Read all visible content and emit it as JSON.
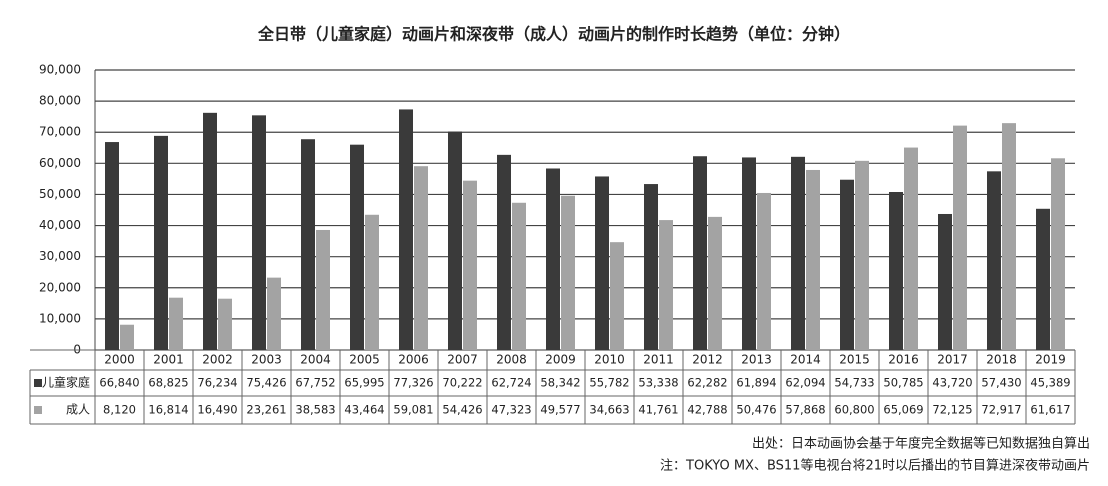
{
  "chart_data": {
    "type": "bar",
    "title": "全日带（儿童家庭）动画片和深夜带（成人）动画片的制作时长趋势（单位：分钟）",
    "categories": [
      "2000",
      "2001",
      "2002",
      "2003",
      "2004",
      "2005",
      "2006",
      "2007",
      "2008",
      "2009",
      "2010",
      "2011",
      "2012",
      "2013",
      "2014",
      "2015",
      "2016",
      "2017",
      "2018",
      "2019"
    ],
    "series": [
      {
        "name": "儿童家庭",
        "color": "#3a3a3a",
        "values": [
          66840,
          68825,
          76234,
          75426,
          67752,
          65995,
          77326,
          70222,
          62724,
          58342,
          55782,
          53338,
          62282,
          61894,
          62094,
          54733,
          50785,
          43720,
          57430,
          45389
        ],
        "value_labels": [
          "66,840",
          "68,825",
          "76,234",
          "75,426",
          "67,752",
          "65,995",
          "77,326",
          "70,222",
          "62,724",
          "58,342",
          "55,782",
          "53,338",
          "62,282",
          "61,894",
          "62,094",
          "54,733",
          "50,785",
          "43,720",
          "57,430",
          "45,389"
        ]
      },
      {
        "name": "成人",
        "color": "#a3a3a3",
        "values": [
          8120,
          16814,
          16490,
          23261,
          38583,
          43464,
          59081,
          54426,
          47323,
          49577,
          34663,
          41761,
          42788,
          50476,
          57868,
          60800,
          65069,
          72125,
          72917,
          61617
        ],
        "value_labels": [
          "8,120",
          "16,814",
          "16,490",
          "23,261",
          "38,583",
          "43,464",
          "59,081",
          "54,426",
          "47,323",
          "49,577",
          "34,663",
          "41,761",
          "42,788",
          "50,476",
          "57,868",
          "60,800",
          "65,069",
          "72,125",
          "72,917",
          "61,617"
        ]
      }
    ],
    "ylim": [
      0,
      90000
    ],
    "yticks": [
      0,
      {
        "value": 10000,
        "label": "10,000"
      },
      {
        "value": 20000,
        "label": "20,000"
      },
      {
        "value": 30000,
        "label": "30,000"
      },
      {
        "value": 40000,
        "label": "40,000"
      },
      {
        "value": 50000,
        "label": "50,000"
      },
      {
        "value": 60000,
        "label": "60,000"
      },
      {
        "value": 70000,
        "label": "70,000"
      },
      {
        "value": 80000,
        "label": "80,000"
      },
      {
        "value": 90000,
        "label": "90,000"
      }
    ],
    "grid": true,
    "source": "出处：日本动画协会基于年度完全数据等已知数据独自算出",
    "note": "注：TOKYO MX、BS11等电视台将21时以后播出的节目算进深夜带动画片"
  }
}
